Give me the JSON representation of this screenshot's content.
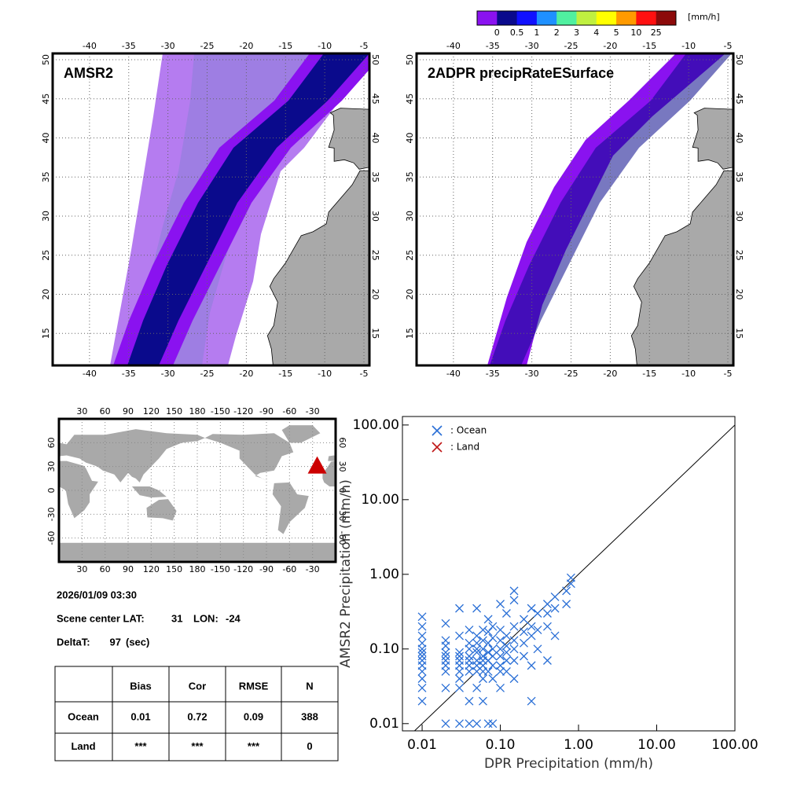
{
  "colorbar": {
    "unit": "[mm/h]",
    "labels": [
      "0",
      "0.5",
      "1",
      "2",
      "3",
      "4",
      "5",
      "10",
      "25"
    ],
    "colors": [
      "#8a12f0",
      "#0a0a8c",
      "#1010ff",
      "#1e90ff",
      "#50f0a0",
      "#c0f040",
      "#ffff00",
      "#ff9a00",
      "#ff1010",
      "#8c0a0a"
    ]
  },
  "maps": [
    {
      "title": "AMSR2",
      "lonlim": [
        -44.7,
        -4.3
      ],
      "latlim": [
        10.9,
        50.8
      ],
      "lon_ticks": [
        -40,
        -35,
        -30,
        -25,
        -20,
        -15,
        -10,
        -5
      ],
      "lat_ticks": [
        15,
        20,
        25,
        30,
        35,
        40,
        45,
        50
      ]
    },
    {
      "title": "2ADPR precipRateESurface",
      "lonlim": [
        -44.7,
        -4.3
      ],
      "latlim": [
        10.9,
        50.8
      ],
      "lon_ticks": [
        -40,
        -35,
        -30,
        -25,
        -20,
        -15,
        -10,
        -5
      ],
      "lat_ticks": [
        15,
        20,
        25,
        30,
        35,
        40,
        45,
        50
      ]
    }
  ],
  "globe": {
    "lonlim": [
      0,
      360
    ],
    "latlim": [
      -90,
      90
    ],
    "lon_ticks": [
      30,
      60,
      90,
      120,
      150,
      180,
      -150,
      -120,
      -90,
      -60,
      -30
    ],
    "lat_ticks": [
      -60,
      -30,
      0,
      30,
      60
    ],
    "marker_color": "#cc0000"
  },
  "info": {
    "datetime": "2026/01/09 03:30",
    "lat_label": "Scene center LAT:",
    "lat": 31,
    "lon_label": "LON:",
    "lon": -24,
    "delta_label": "DeltaT:",
    "delta": 97,
    "delta_unit": "(sec)"
  },
  "table": {
    "headers": [
      "Bias",
      "Cor",
      "RMSE",
      "N"
    ],
    "rows": [
      {
        "label": "Ocean",
        "cells": [
          0.01,
          0.72,
          0.09,
          388
        ]
      },
      {
        "label": "Land",
        "cells": [
          "***",
          "***",
          "***",
          0
        ]
      }
    ]
  },
  "chart_data": {
    "type": "scatter",
    "log_x": true,
    "log_y": true,
    "x_label": "DPR Precipitation (mm/h)",
    "y_label": "AMSR2 Precipitation (mm/h)",
    "xlim": [
      0.0056,
      100
    ],
    "ylim": [
      0.008,
      130
    ],
    "xticks": [
      {
        "value": 0.01,
        "label": "0.01"
      },
      {
        "value": 0.1,
        "label": "0.10"
      },
      {
        "value": 1,
        "label": "1.00"
      },
      {
        "value": 10,
        "label": "10.00"
      },
      {
        "value": 100,
        "label": "100.00"
      }
    ],
    "yticks": [
      {
        "value": 0.01,
        "label": "0.01"
      },
      {
        "value": 0.1,
        "label": "0.10"
      },
      {
        "value": 1,
        "label": "1.00"
      },
      {
        "value": 10,
        "label": "10.00"
      },
      {
        "value": 100,
        "label": "100.00"
      }
    ],
    "series": [
      {
        "name": ": Ocean",
        "color": "#2a6fd6",
        "x": [
          0.01,
          0.01,
          0.01,
          0.01,
          0.01,
          0.01,
          0.01,
          0.01,
          0.01,
          0.01,
          0.01,
          0.01,
          0.01,
          0.02,
          0.02,
          0.02,
          0.02,
          0.02,
          0.02,
          0.02,
          0.02,
          0.02,
          0.02,
          0.03,
          0.03,
          0.03,
          0.03,
          0.03,
          0.03,
          0.03,
          0.03,
          0.03,
          0.03,
          0.04,
          0.04,
          0.04,
          0.04,
          0.04,
          0.04,
          0.04,
          0.04,
          0.04,
          0.05,
          0.05,
          0.05,
          0.05,
          0.05,
          0.05,
          0.05,
          0.05,
          0.05,
          0.05,
          0.06,
          0.06,
          0.06,
          0.06,
          0.06,
          0.06,
          0.06,
          0.06,
          0.06,
          0.07,
          0.07,
          0.07,
          0.07,
          0.07,
          0.07,
          0.07,
          0.08,
          0.08,
          0.08,
          0.08,
          0.08,
          0.08,
          0.08,
          0.1,
          0.1,
          0.1,
          0.1,
          0.1,
          0.1,
          0.1,
          0.1,
          0.12,
          0.12,
          0.12,
          0.12,
          0.12,
          0.12,
          0.15,
          0.15,
          0.15,
          0.15,
          0.15,
          0.15,
          0.15,
          0.2,
          0.2,
          0.2,
          0.2,
          0.25,
          0.25,
          0.25,
          0.25,
          0.25,
          0.3,
          0.3,
          0.3,
          0.4,
          0.4,
          0.4,
          0.4,
          0.5,
          0.5,
          0.5,
          0.7,
          0.7,
          0.8,
          0.8
        ],
        "values": [
          0.27,
          0.2,
          0.15,
          0.12,
          0.1,
          0.09,
          0.08,
          0.07,
          0.06,
          0.05,
          0.04,
          0.03,
          0.02,
          0.22,
          0.13,
          0.11,
          0.09,
          0.08,
          0.07,
          0.06,
          0.05,
          0.03,
          0.01,
          0.35,
          0.15,
          0.09,
          0.08,
          0.07,
          0.06,
          0.05,
          0.04,
          0.03,
          0.01,
          0.18,
          0.12,
          0.1,
          0.08,
          0.07,
          0.06,
          0.05,
          0.02,
          0.01,
          0.35,
          0.15,
          0.12,
          0.1,
          0.09,
          0.07,
          0.06,
          0.05,
          0.03,
          0.01,
          0.18,
          0.13,
          0.1,
          0.08,
          0.07,
          0.06,
          0.05,
          0.04,
          0.02,
          0.25,
          0.17,
          0.12,
          0.09,
          0.07,
          0.05,
          0.01,
          0.2,
          0.14,
          0.1,
          0.08,
          0.06,
          0.04,
          0.01,
          0.4,
          0.18,
          0.13,
          0.1,
          0.08,
          0.06,
          0.05,
          0.03,
          0.3,
          0.15,
          0.11,
          0.09,
          0.07,
          0.05,
          0.6,
          0.45,
          0.2,
          0.13,
          0.1,
          0.07,
          0.04,
          0.25,
          0.17,
          0.12,
          0.08,
          0.35,
          0.2,
          0.15,
          0.06,
          0.02,
          0.3,
          0.18,
          0.1,
          0.4,
          0.3,
          0.2,
          0.07,
          0.5,
          0.35,
          0.15,
          0.4,
          0.6,
          0.9,
          0.75
        ]
      },
      {
        "name": ": Land",
        "color": "#c01818",
        "x": [],
        "values": []
      }
    ]
  }
}
